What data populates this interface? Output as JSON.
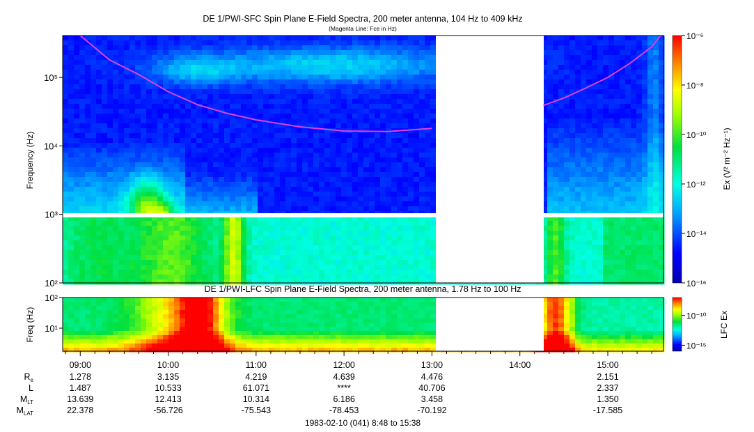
{
  "chart_data": [
    {
      "type": "heatmap",
      "title": "DE 1/PWI-SFC  Spin Plane E-Field Spectra, 200 meter antenna, 104 Hz to 409 kHz",
      "subtitle": "(Magenta Line: Fce in Hz)",
      "ylabel": "Frequency (Hz)",
      "y_scale": "log",
      "ylim": [
        100,
        409000
      ],
      "y_ticks": [
        {
          "value": 100,
          "label": "10²"
        },
        {
          "value": 1000,
          "label": "10³"
        },
        {
          "value": 10000,
          "label": "10⁴"
        },
        {
          "value": 100000,
          "label": "10⁵"
        }
      ],
      "colorbar": {
        "label": "Ex (V² m⁻² Hz⁻¹)",
        "scale": "log",
        "range": [
          1e-16,
          1e-06
        ],
        "ticks": [
          {
            "value": 1e-06,
            "label": "10⁻⁶"
          },
          {
            "value": 1e-08,
            "label": "10⁻⁸"
          },
          {
            "value": 1e-10,
            "label": "10⁻¹⁰"
          },
          {
            "value": 1e-12,
            "label": "10⁻¹²"
          },
          {
            "value": 1e-14,
            "label": "10⁻¹⁴"
          },
          {
            "value": 1e-16,
            "label": "10⁻¹⁶"
          }
        ]
      },
      "data_gaps": [
        [
          "13:02",
          "14:16"
        ]
      ],
      "fce_line": {
        "color": "#e040e0",
        "segments": [
          {
            "time": [
              "09:00",
              "09:20",
              "09:40",
              "10:00",
              "10:20",
              "10:40",
              "11:00",
              "11:30",
              "12:00",
              "12:30",
              "13:00"
            ],
            "freq_hz": [
              409000,
              180000,
              110000,
              62000,
              40000,
              30000,
              24000,
              19000,
              16500,
              16200,
              18000
            ]
          },
          {
            "time": [
              "14:16",
              "14:30",
              "14:45",
              "15:00",
              "15:15",
              "15:30",
              "15:36"
            ],
            "freq_hz": [
              39000,
              50000,
              70000,
              100000,
              160000,
              280000,
              409000
            ]
          }
        ]
      }
    },
    {
      "type": "heatmap",
      "title": "DE 1/PWI-LFC  Spin Plane E-Field Spectra, 200 meter antenna, 1.78 Hz to 100 Hz",
      "ylabel": "Freq (Hz)",
      "y_scale": "log",
      "ylim": [
        1.78,
        100
      ],
      "y_ticks": [
        {
          "value": 10,
          "label": "10¹"
        },
        {
          "value": 100,
          "label": "10²"
        }
      ],
      "colorbar": {
        "label": "LFC Ex",
        "scale": "log",
        "range": [
          1e-16,
          1e-07
        ],
        "ticks": [
          {
            "value": 1e-10,
            "label": "10⁻¹⁰"
          },
          {
            "value": 1e-15,
            "label": "10⁻¹⁵"
          }
        ]
      },
      "data_gaps": [
        [
          "13:02",
          "14:16"
        ]
      ]
    }
  ],
  "time_axis": {
    "tick_labels": [
      "09:00",
      "10:00",
      "11:00",
      "12:00",
      "13:00",
      "14:00",
      "15:00"
    ],
    "start": "08:48",
    "end": "15:38",
    "caption": "1983-02-10 (041) 8:48 to 15:38"
  },
  "ephemeris": {
    "rows": [
      {
        "label": "R",
        "sub": "e",
        "values": [
          "1.278",
          "3.135",
          "4.219",
          "4.639",
          "4.476",
          "",
          "2.151"
        ]
      },
      {
        "label": "L",
        "sub": "",
        "values": [
          "1.487",
          "10.533",
          "61.071",
          "****",
          "40.706",
          "",
          "2.337"
        ]
      },
      {
        "label": "M",
        "sub": "LT",
        "values": [
          "13.639",
          "12.413",
          "10.314",
          "6.186",
          "3.458",
          "",
          "1.350"
        ]
      },
      {
        "label": "M",
        "sub": "LAT",
        "values": [
          "22.378",
          "-56.726",
          "-75.543",
          "-78.453",
          "-70.192",
          "",
          "-17.585"
        ]
      }
    ]
  }
}
